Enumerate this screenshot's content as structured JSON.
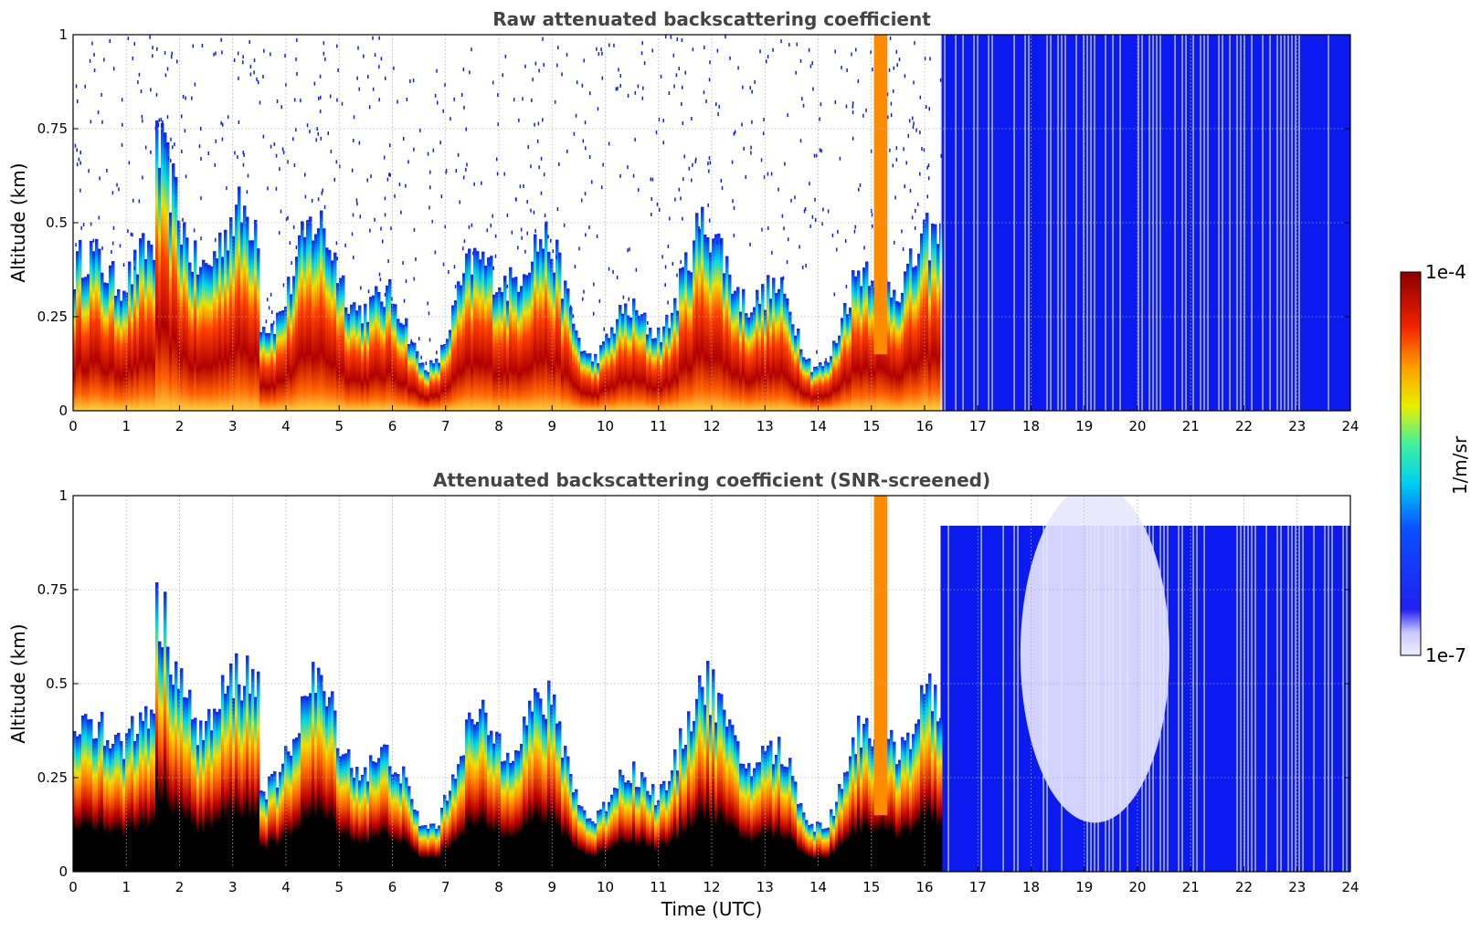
{
  "chart_data": [
    {
      "type": "heatmap",
      "title": "Raw attenuated backscattering coefficient",
      "xlabel": "",
      "ylabel": "Altitude (km)",
      "xlim": [
        0,
        24
      ],
      "ylim": [
        0,
        1
      ],
      "xticks": [
        "0",
        "1",
        "2",
        "3",
        "4",
        "5",
        "6",
        "7",
        "8",
        "9",
        "10",
        "11",
        "12",
        "13",
        "14",
        "15",
        "16",
        "17",
        "18",
        "19",
        "20",
        "21",
        "22",
        "23",
        "24"
      ],
      "yticks": [
        "0",
        "0.25",
        "0.5",
        "0.75",
        "1"
      ],
      "grid": true,
      "colormap": "jet",
      "color_scale": "log"
    },
    {
      "type": "heatmap",
      "title": "Attenuated backscattering coefficient (SNR-screened)",
      "xlabel": "Time (UTC)",
      "ylabel": "Altitude (km)",
      "xlim": [
        0,
        24
      ],
      "ylim": [
        0,
        1
      ],
      "xticks": [
        "0",
        "1",
        "2",
        "3",
        "4",
        "5",
        "6",
        "7",
        "8",
        "9",
        "10",
        "11",
        "12",
        "13",
        "14",
        "15",
        "16",
        "17",
        "18",
        "19",
        "20",
        "21",
        "22",
        "23",
        "24"
      ],
      "yticks": [
        "0",
        "0.25",
        "0.5",
        "0.75",
        "1"
      ],
      "grid": true,
      "colormap": "jet",
      "color_scale": "log"
    }
  ],
  "colorbar": {
    "label": "1/m/sr",
    "max_label": "1e-4",
    "min_label": "1e-7",
    "range": [
      1e-07,
      0.0001
    ]
  },
  "colors": {
    "title": "#444444",
    "dark_red": "#8b0000",
    "red": "#e01010",
    "orange": "#ff8c00",
    "yellow": "#f0e000",
    "cyan": "#00d8e8",
    "blue": "#0a1af0",
    "pale": "#e8e8ff"
  }
}
